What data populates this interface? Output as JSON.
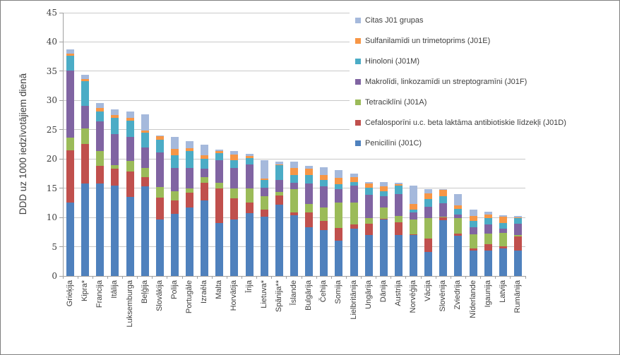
{
  "chart_data": {
    "type": "bar",
    "stacked": true,
    "ylabel": "DDD uz 1000 iedzīvotājiem dienā",
    "ylim": [
      0,
      45
    ],
    "yticks": [
      0,
      5,
      10,
      15,
      20,
      25,
      30,
      35,
      40,
      45
    ],
    "grid": true,
    "legend_position": "top-right",
    "categories": [
      "Grieķija",
      "Kipra*",
      "Francija",
      "Itālija",
      "Luksemburga",
      "Beļģija",
      "Slovākija",
      "Polija",
      "Portugāle",
      "Izraēla",
      "Malta",
      "Horvātija",
      "Īrija",
      "Lietuva*",
      "Spānija**",
      "Īslande",
      "Bulgārija",
      "Čehija",
      "Somija",
      "Lielbritānija",
      "Ungārija",
      "Dānija",
      "Austrija",
      "Norvēģija",
      "Vācija",
      "Slovēnija",
      "Zviedrija",
      "Nīderlande",
      "Igaunija",
      "Latvija",
      "Rumānija"
    ],
    "series": [
      {
        "name": "Penicilīni (J01C)",
        "color": "#4F81BD",
        "values": [
          12.6,
          15.8,
          15.8,
          15.4,
          13.5,
          15.3,
          9.7,
          10.6,
          11.7,
          12.9,
          9.0,
          9.65,
          10.7,
          10.1,
          12.2,
          10.4,
          8.35,
          7.8,
          6.0,
          8.1,
          6.95,
          9.7,
          7.0,
          6.95,
          4.1,
          9.5,
          6.85,
          4.4,
          4.4,
          4.7,
          4.3
        ]
      },
      {
        "name": "Cefalosporīni u.c. beta laktāma antibiotiskie līdzekļi (J01D)",
        "color": "#C0504D",
        "values": [
          8.9,
          6.8,
          3.0,
          2.9,
          4.3,
          1.6,
          3.7,
          2.3,
          2.5,
          3.0,
          5.9,
          3.65,
          1.8,
          1.2,
          1.6,
          0.4,
          2.5,
          1.6,
          2.2,
          0.65,
          2.0,
          0.1,
          2.2,
          0.2,
          2.25,
          0.5,
          0.4,
          0.3,
          1.0,
          0.4,
          2.4
        ]
      },
      {
        "name": "Tetraciklīni (J01A)",
        "color": "#9BBB59",
        "values": [
          2.1,
          2.6,
          2.6,
          0.7,
          1.9,
          1.6,
          1.8,
          1.6,
          0.7,
          1.0,
          1.0,
          1.6,
          2.5,
          2.3,
          0.55,
          4.0,
          1.4,
          2.3,
          4.3,
          3.75,
          0.9,
          1.9,
          1.1,
          2.5,
          3.5,
          0.15,
          2.7,
          2.4,
          1.8,
          2.3,
          0.25
        ]
      },
      {
        "name": "Makrolīdi, linkozamīdi un streptogramīni (J01F)",
        "color": "#8064A2",
        "values": [
          11.5,
          3.9,
          5.0,
          5.2,
          4.1,
          3.4,
          5.9,
          3.9,
          3.6,
          1.4,
          3.9,
          3.6,
          4.1,
          1.5,
          2.1,
          1.1,
          3.5,
          3.6,
          2.3,
          3.0,
          4.0,
          1.9,
          3.7,
          1.2,
          2.0,
          2.25,
          0.6,
          1.2,
          1.6,
          0.7,
          2.0
        ]
      },
      {
        "name": "Hinoloni (J01M)",
        "color": "#4BACC6",
        "values": [
          2.5,
          4.2,
          1.7,
          2.8,
          2.8,
          2.6,
          2.2,
          2.2,
          2.8,
          1.7,
          1.2,
          1.3,
          1.0,
          1.3,
          2.5,
          1.4,
          1.5,
          1.1,
          0.9,
          0.5,
          1.2,
          0.9,
          1.4,
          0.5,
          1.35,
          1.2,
          0.9,
          1.1,
          1.1,
          1.0,
          0.9
        ]
      },
      {
        "name": "Sulfanilamīdi un trimetoprims (J01E)",
        "color": "#F79646",
        "values": [
          0.45,
          0.4,
          0.6,
          0.5,
          0.45,
          0.4,
          0.6,
          1.1,
          0.5,
          0.6,
          0.4,
          1.0,
          0.4,
          0.2,
          0.15,
          1.2,
          1.1,
          0.9,
          1.1,
          0.9,
          0.7,
          0.8,
          0.3,
          0.9,
          0.9,
          1.1,
          0.6,
          0.9,
          0.6,
          1.0,
          0.15
        ]
      },
      {
        "name": "Citas J01 grupas",
        "color": "#A5B9DC",
        "values": [
          0.7,
          0.7,
          0.9,
          1.0,
          1.1,
          2.7,
          0.1,
          2.1,
          1.3,
          1.9,
          0.25,
          0.5,
          0.4,
          3.2,
          0.45,
          1.0,
          0.5,
          1.3,
          1.3,
          0.55,
          0.3,
          0.8,
          0.2,
          3.2,
          0.7,
          0.1,
          1.9,
          1.0,
          0.5,
          0.3,
          0.25
        ]
      }
    ]
  }
}
